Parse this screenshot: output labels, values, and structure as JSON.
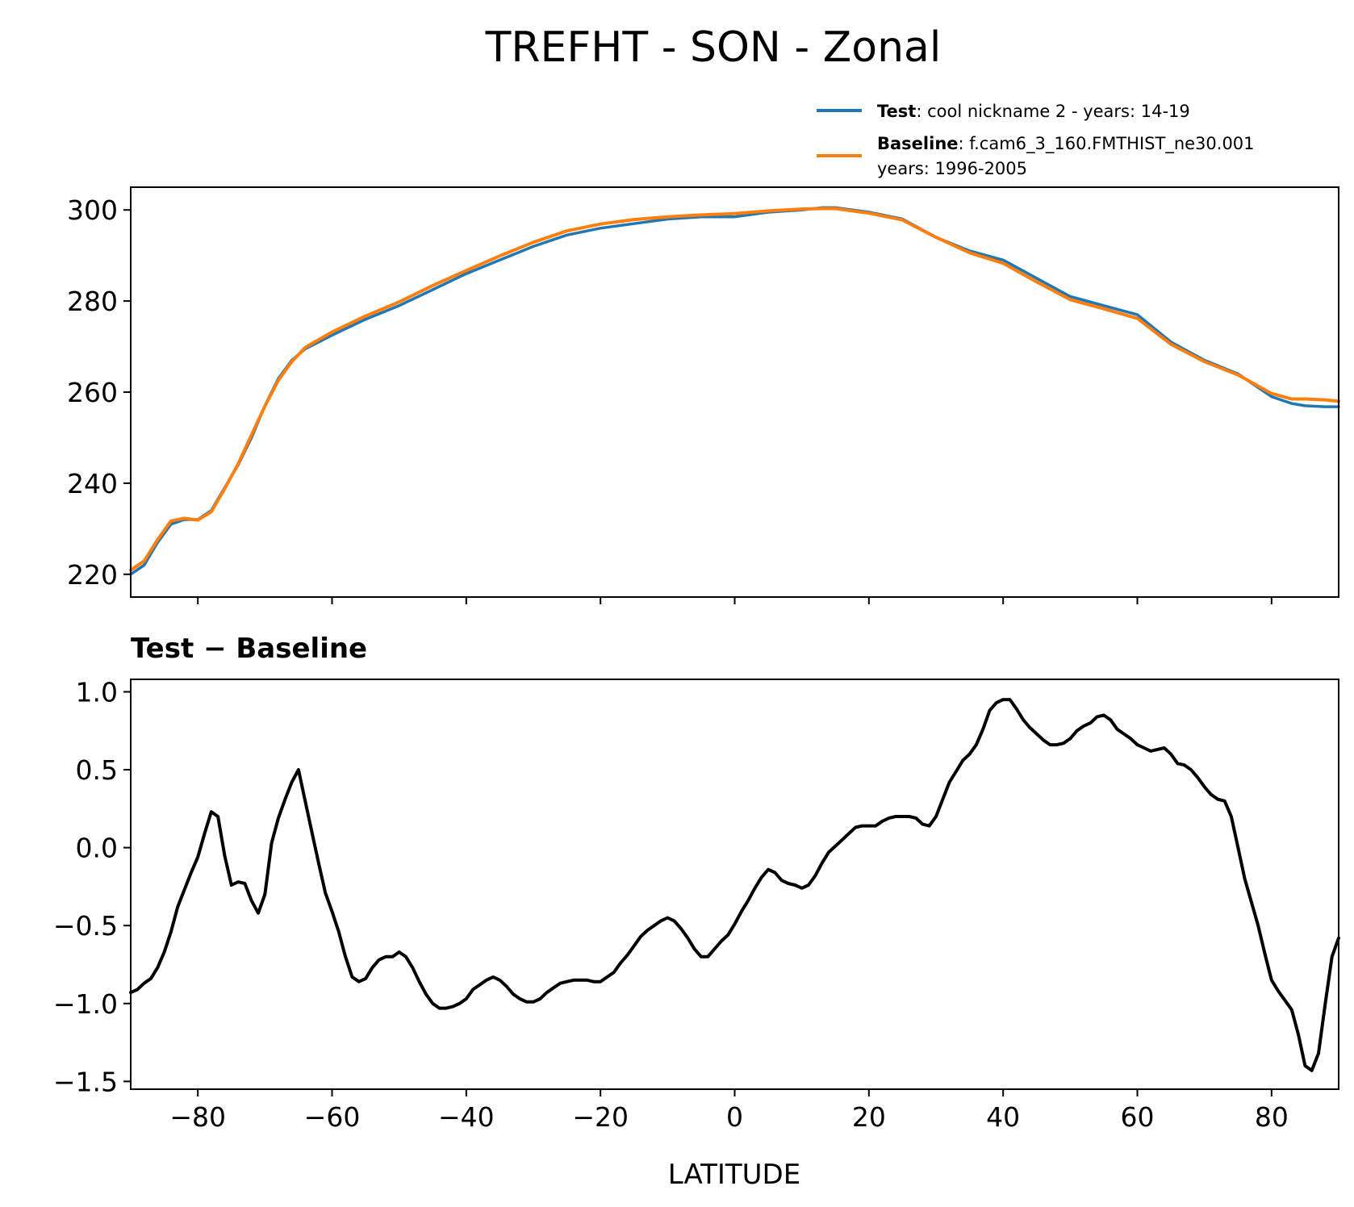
{
  "chart_data": [
    {
      "type": "line",
      "title": "TREFHT - SON - Zonal",
      "xlabel": "",
      "ylabel": "",
      "xlim": [
        -90,
        90
      ],
      "ylim": [
        215,
        305
      ],
      "x_ticks": [
        -80,
        -60,
        -40,
        -20,
        0,
        20,
        40,
        60,
        80
      ],
      "y_ticks": [
        220,
        240,
        260,
        280,
        300
      ],
      "y_tick_labels": [
        "220",
        "240",
        "260",
        "280",
        "300"
      ],
      "grid": false,
      "legend_position": "top-right",
      "legend": {
        "test_label": "Test",
        "test_text": ": cool nickname 2 - years: 14-19",
        "baseline_label": "Baseline",
        "baseline_text": ": f.cam6_3_160.FMTHIST_ne30.001",
        "baseline_text_line2": "years: 1996-2005"
      },
      "series": [
        {
          "name": "Test",
          "color": "#1f77b4",
          "x": [
            -90,
            -88,
            -86,
            -84,
            -82,
            -80,
            -78,
            -76,
            -74,
            -72,
            -70,
            -68,
            -66,
            -64,
            -62,
            -60,
            -55,
            -50,
            -45,
            -40,
            -35,
            -30,
            -25,
            -20,
            -15,
            -10,
            -5,
            0,
            5,
            10,
            13,
            15,
            20,
            25,
            30,
            35,
            40,
            45,
            50,
            55,
            60,
            65,
            70,
            75,
            80,
            83,
            85,
            88,
            90
          ],
          "values": [
            220,
            222,
            227,
            231,
            232,
            232,
            234,
            239,
            244,
            250,
            257,
            263,
            267,
            269.5,
            271,
            272.5,
            276,
            279,
            282.5,
            286,
            289,
            292,
            294.5,
            296,
            297,
            298,
            298.5,
            298.5,
            299.5,
            300,
            300.5,
            300.5,
            299.5,
            298,
            294,
            291,
            289,
            285,
            281,
            279,
            277,
            271,
            267,
            264,
            259,
            257.5,
            257,
            256.8,
            256.8
          ]
        },
        {
          "name": "Baseline",
          "color": "#ff7f0e",
          "x": [
            -90,
            -88,
            -86,
            -84,
            -82,
            -80,
            -78,
            -76,
            -74,
            -72,
            -70,
            -68,
            -66,
            -64,
            -62,
            -60,
            -55,
            -50,
            -45,
            -40,
            -35,
            -30,
            -25,
            -20,
            -15,
            -10,
            -5,
            0,
            5,
            10,
            13,
            15,
            20,
            25,
            30,
            35,
            40,
            45,
            50,
            55,
            60,
            65,
            70,
            75,
            80,
            83,
            85,
            88,
            90
          ],
          "values": [
            220.9,
            222.9,
            227.6,
            231.7,
            232.3,
            231.9,
            233.7,
            238.8,
            244.2,
            250.6,
            256.9,
            262.6,
            266.7,
            269.8,
            271.5,
            273.2,
            276.7,
            279.8,
            283.4,
            286.7,
            289.9,
            292.9,
            295.4,
            296.9,
            297.9,
            298.5,
            298.9,
            299.2,
            299.8,
            300.2,
            300.3,
            300.3,
            299.3,
            297.8,
            294.0,
            290.6,
            288.3,
            284.2,
            280.3,
            278.3,
            276.2,
            270.5,
            266.7,
            263.8,
            259.7,
            258.5,
            258.5,
            258.3,
            258.0
          ]
        }
      ]
    },
    {
      "type": "line",
      "title": "Test − Baseline",
      "xlabel": "LATITUDE",
      "ylabel": "",
      "xlim": [
        -90,
        90
      ],
      "ylim": [
        -1.55,
        1.08
      ],
      "x_ticks": [
        -80,
        -60,
        -40,
        -20,
        0,
        20,
        40,
        60,
        80
      ],
      "x_tick_labels": [
        "−80",
        "−60",
        "−40",
        "−20",
        "0",
        "20",
        "40",
        "60",
        "80"
      ],
      "y_ticks": [
        1.0,
        0.5,
        0.0,
        -0.5,
        -1.0,
        -1.5
      ],
      "y_tick_labels": [
        "1.0",
        "0.5",
        "0.0",
        "−0.5",
        "−1.0",
        "−1.5"
      ],
      "grid": false,
      "series": [
        {
          "name": "Test − Baseline",
          "color": "#000000",
          "x": [
            -90,
            -89,
            -88,
            -87,
            -86,
            -85,
            -84,
            -83,
            -82,
            -81,
            -80,
            -79,
            -78,
            -77,
            -76,
            -75,
            -74,
            -73,
            -72,
            -71,
            -70,
            -69,
            -68,
            -67,
            -66,
            -65,
            -64,
            -63,
            -62,
            -61,
            -60,
            -59,
            -58,
            -57,
            -56,
            -55,
            -54,
            -53,
            -52,
            -51,
            -50,
            -49,
            -48,
            -47,
            -46,
            -45,
            -44,
            -43,
            -42,
            -41,
            -40,
            -39,
            -38,
            -37,
            -36,
            -35,
            -34,
            -33,
            -32,
            -31,
            -30,
            -29,
            -28,
            -27,
            -26,
            -25,
            -24,
            -23,
            -22,
            -21,
            -20,
            -19,
            -18,
            -17,
            -16,
            -15,
            -14,
            -13,
            -12,
            -11,
            -10,
            -9,
            -8,
            -7,
            -6,
            -5,
            -4,
            -3,
            -2,
            -1,
            0,
            1,
            2,
            3,
            4,
            5,
            6,
            7,
            8,
            9,
            10,
            11,
            12,
            13,
            14,
            15,
            16,
            17,
            18,
            19,
            20,
            21,
            22,
            23,
            24,
            25,
            26,
            27,
            28,
            29,
            30,
            31,
            32,
            33,
            34,
            35,
            36,
            37,
            38,
            39,
            40,
            41,
            42,
            43,
            44,
            45,
            46,
            47,
            48,
            49,
            50,
            51,
            52,
            53,
            54,
            55,
            56,
            57,
            58,
            59,
            60,
            61,
            62,
            63,
            64,
            65,
            66,
            67,
            68,
            69,
            70,
            71,
            72,
            73,
            74,
            75,
            76,
            77,
            78,
            79,
            80,
            81,
            82,
            83,
            84,
            85,
            86,
            87,
            88,
            89,
            90
          ],
          "values": [
            -0.93,
            -0.91,
            -0.87,
            -0.84,
            -0.77,
            -0.67,
            -0.54,
            -0.38,
            -0.27,
            -0.16,
            -0.06,
            0.09,
            0.23,
            0.2,
            -0.05,
            -0.24,
            -0.22,
            -0.23,
            -0.34,
            -0.42,
            -0.3,
            0.03,
            0.19,
            0.31,
            0.42,
            0.5,
            0.3,
            0.1,
            -0.1,
            -0.29,
            -0.41,
            -0.54,
            -0.7,
            -0.83,
            -0.86,
            -0.84,
            -0.77,
            -0.72,
            -0.7,
            -0.7,
            -0.67,
            -0.7,
            -0.77,
            -0.86,
            -0.94,
            -1.0,
            -1.03,
            -1.03,
            -1.02,
            -1.0,
            -0.97,
            -0.91,
            -0.88,
            -0.85,
            -0.83,
            -0.85,
            -0.89,
            -0.94,
            -0.97,
            -0.99,
            -0.99,
            -0.97,
            -0.93,
            -0.9,
            -0.87,
            -0.86,
            -0.85,
            -0.85,
            -0.85,
            -0.86,
            -0.86,
            -0.83,
            -0.8,
            -0.74,
            -0.69,
            -0.63,
            -0.57,
            -0.53,
            -0.5,
            -0.47,
            -0.45,
            -0.47,
            -0.52,
            -0.58,
            -0.65,
            -0.7,
            -0.7,
            -0.65,
            -0.6,
            -0.56,
            -0.49,
            -0.41,
            -0.34,
            -0.26,
            -0.19,
            -0.14,
            -0.16,
            -0.21,
            -0.23,
            -0.24,
            -0.26,
            -0.24,
            -0.18,
            -0.1,
            -0.03,
            0.01,
            0.05,
            0.09,
            0.13,
            0.14,
            0.14,
            0.14,
            0.17,
            0.19,
            0.2,
            0.2,
            0.2,
            0.19,
            0.15,
            0.14,
            0.2,
            0.31,
            0.42,
            0.49,
            0.56,
            0.6,
            0.66,
            0.76,
            0.88,
            0.93,
            0.95,
            0.95,
            0.89,
            0.82,
            0.77,
            0.73,
            0.69,
            0.66,
            0.66,
            0.67,
            0.7,
            0.75,
            0.78,
            0.8,
            0.84,
            0.85,
            0.82,
            0.76,
            0.73,
            0.7,
            0.66,
            0.64,
            0.62,
            0.63,
            0.64,
            0.6,
            0.54,
            0.53,
            0.5,
            0.45,
            0.39,
            0.34,
            0.31,
            0.3,
            0.2,
            0.0,
            -0.2,
            -0.35,
            -0.5,
            -0.68,
            -0.85,
            -0.92,
            -0.98,
            -1.04,
            -1.2,
            -1.4,
            -1.43,
            -1.32,
            -1.0,
            -0.7,
            -0.58
          ]
        }
      ]
    }
  ]
}
